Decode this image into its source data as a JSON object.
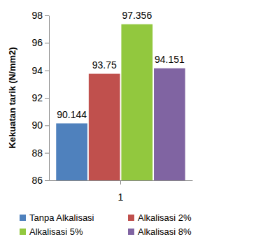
{
  "chart_data": {
    "type": "bar",
    "y_label": "Kekuatan tarik (N/mm2)",
    "categories": [
      "1"
    ],
    "series": [
      {
        "name": "Tanpa Alkalisasi",
        "color": "#4f81bd",
        "values": [
          90.144
        ]
      },
      {
        "name": "Alkalisasi 2%",
        "color": "#c0504d",
        "values": [
          93.75
        ]
      },
      {
        "name": "Alkalisasi 5%",
        "color": "#92c83e",
        "values": [
          97.356
        ]
      },
      {
        "name": "Alkalisasi 8%",
        "color": "#8064a2",
        "values": [
          94.151
        ]
      }
    ],
    "ylim": [
      86,
      98
    ],
    "yticks": [
      86,
      88,
      90,
      92,
      94,
      96,
      98
    ],
    "grid": false,
    "data_labels": true,
    "legend": "bottom"
  }
}
